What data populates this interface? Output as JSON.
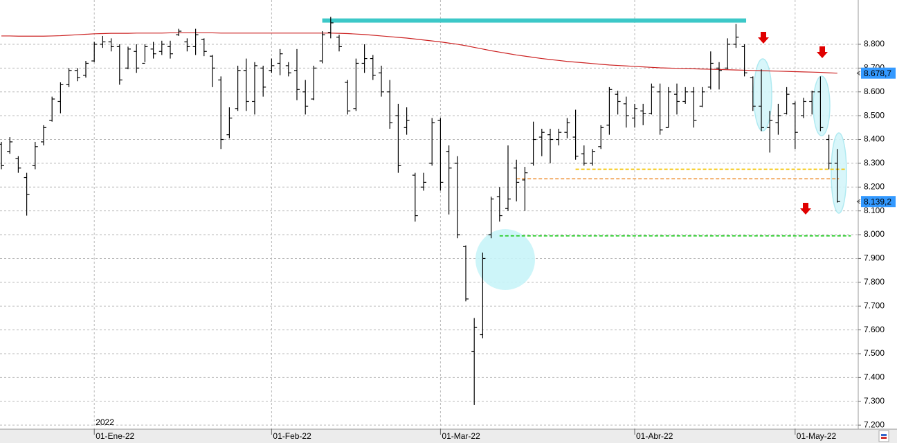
{
  "chart_data": {
    "type": "ohlc",
    "color": "#000000",
    "categories": [
      null,
      null,
      null,
      null,
      null,
      null,
      null,
      null,
      null,
      null,
      null,
      "01-Ene-22",
      null,
      null,
      null,
      null,
      null,
      null,
      null,
      null,
      null,
      null,
      null,
      null,
      null,
      null,
      null,
      null,
      null,
      null,
      null,
      null,
      "01-Feb-22",
      null,
      null,
      null,
      null,
      null,
      null,
      null,
      null,
      null,
      null,
      null,
      null,
      null,
      null,
      null,
      null,
      null,
      null,
      null,
      "01-Mar-22",
      null,
      null,
      null,
      null,
      null,
      null,
      null,
      null,
      null,
      null,
      null,
      null,
      null,
      null,
      null,
      null,
      null,
      null,
      null,
      null,
      null,
      null,
      "01-Abr-22",
      null,
      null,
      null,
      null,
      null,
      null,
      null,
      null,
      null,
      null,
      null,
      null,
      null,
      null,
      null,
      null,
      null,
      null,
      "01-May-22",
      null,
      null,
      null,
      null,
      null
    ],
    "year_label": {
      "index": 11,
      "label": "2022"
    },
    "open": [
      8380,
      8350,
      8320,
      8240,
      8290,
      8390,
      8480,
      8560,
      8630,
      8690,
      8670,
      8730,
      8800,
      8810,
      8790,
      8700,
      8770,
      8720,
      8780,
      8770,
      8790,
      8840,
      8810,
      8790,
      8820,
      8750,
      8650,
      8420,
      8530,
      8690,
      8560,
      8700,
      8690,
      8720,
      8710,
      8690,
      8600,
      8570,
      8730,
      8850,
      8830,
      8640,
      8530,
      8720,
      8740,
      8680,
      8600,
      8500,
      8450,
      8250,
      8200,
      8300,
      8480,
      8350,
      8300,
      7950,
      7510,
      7580,
      8000,
      8160,
      8110,
      8280,
      8230,
      8300,
      8410,
      8420,
      8400,
      8430,
      8410,
      8340,
      8300,
      8370,
      8460,
      8590,
      8550,
      8490,
      8520,
      8510,
      8600,
      8450,
      8590,
      8560,
      8600,
      8540,
      8620,
      8700,
      8700,
      8800,
      8790,
      8660,
      8540,
      8450,
      8470,
      8510,
      8550,
      8500,
      8560,
      8600,
      8400,
      8300
    ],
    "high": [
      8390,
      8410,
      8330,
      8260,
      8390,
      8460,
      8580,
      8640,
      8700,
      8700,
      8730,
      8810,
      8835,
      8825,
      8800,
      8790,
      8800,
      8800,
      8810,
      8815,
      8815,
      8865,
      8825,
      8865,
      8825,
      8755,
      8665,
      8535,
      8710,
      8740,
      8725,
      8710,
      8740,
      8780,
      8725,
      8780,
      8650,
      8710,
      8855,
      8915,
      8840,
      8650,
      8740,
      8800,
      8755,
      8710,
      8650,
      8550,
      8535,
      8260,
      8260,
      8490,
      8490,
      8375,
      8330,
      7955,
      7650,
      7925,
      8160,
      8200,
      8375,
      8315,
      8285,
      8475,
      8445,
      8445,
      8445,
      8490,
      8525,
      8375,
      8360,
      8460,
      8620,
      8605,
      8580,
      8550,
      8550,
      8635,
      8635,
      8620,
      8635,
      8620,
      8620,
      8620,
      8770,
      8725,
      8825,
      8885,
      8800,
      8665,
      8695,
      8520,
      8550,
      8620,
      8560,
      8575,
      8605,
      8665,
      8420,
      8360
    ],
    "low": [
      8275,
      8340,
      8260,
      8080,
      8275,
      8375,
      8475,
      8510,
      8620,
      8645,
      8660,
      8725,
      8785,
      8770,
      8630,
      8695,
      8680,
      8725,
      8740,
      8755,
      8740,
      8835,
      8770,
      8755,
      8750,
      8620,
      8360,
      8405,
      8520,
      8520,
      8505,
      8580,
      8680,
      8670,
      8665,
      8565,
      8505,
      8565,
      8720,
      8825,
      8770,
      8505,
      8520,
      8680,
      8650,
      8580,
      8445,
      8260,
      8420,
      8055,
      8185,
      8290,
      8185,
      8085,
      7985,
      7720,
      7285,
      7565,
      7985,
      8055,
      8100,
      8140,
      8100,
      8290,
      8330,
      8300,
      8375,
      8405,
      8315,
      8290,
      8290,
      8360,
      8420,
      8505,
      8450,
      8450,
      8460,
      8505,
      8420,
      8450,
      8505,
      8550,
      8450,
      8535,
      8610,
      8610,
      8695,
      8785,
      8665,
      8520,
      8435,
      8345,
      8420,
      8505,
      8360,
      8490,
      8505,
      8435,
      8275,
      8135
    ],
    "close": [
      8290,
      8390,
      8280,
      8170,
      8370,
      8450,
      8570,
      8630,
      8690,
      8660,
      8720,
      8800,
      8810,
      8790,
      8650,
      8780,
      8700,
      8790,
      8760,
      8800,
      8760,
      8855,
      8790,
      8840,
      8770,
      8700,
      8400,
      8490,
      8690,
      8560,
      8710,
      8620,
      8710,
      8760,
      8680,
      8610,
      8540,
      8700,
      8840,
      8890,
      8790,
      8520,
      8720,
      8740,
      8670,
      8600,
      8470,
      8290,
      8480,
      8080,
      8220,
      8470,
      8220,
      8280,
      8000,
      7730,
      7610,
      7900,
      8150,
      8080,
      8150,
      8220,
      8260,
      8400,
      8430,
      8400,
      8430,
      8470,
      8330,
      8300,
      8350,
      8450,
      8610,
      8560,
      8500,
      8530,
      8510,
      8620,
      8440,
      8600,
      8560,
      8600,
      8480,
      8600,
      8720,
      8690,
      8800,
      8830,
      8680,
      8540,
      8450,
      8480,
      8500,
      8590,
      8430,
      8560,
      8600,
      8450,
      8300,
      8139.2
    ],
    "moving_average": {
      "color": "#cc2222",
      "values": [
        8835,
        8835,
        8834,
        8834,
        8834,
        8834,
        8835,
        8836,
        8838,
        8840,
        8842,
        8844,
        8845,
        8846,
        8846,
        8846,
        8847,
        8847,
        8847,
        8847,
        8848,
        8848,
        8848,
        8848,
        8848,
        8848,
        8847,
        8847,
        8847,
        8847,
        8847,
        8847,
        8847,
        8847,
        8847,
        8847,
        8847,
        8847,
        8847,
        8847,
        8846,
        8845,
        8843,
        8841,
        8838,
        8835,
        8832,
        8829,
        8826,
        8822,
        8818,
        8814,
        8810,
        8805,
        8800,
        8794,
        8787,
        8780,
        8773,
        8767,
        8761,
        8755,
        8750,
        8745,
        8740,
        8736,
        8732,
        8728,
        8725,
        8722,
        8719,
        8716,
        8713,
        8711,
        8709,
        8707,
        8705,
        8703,
        8701,
        8700,
        8699,
        8698,
        8697,
        8696,
        8695,
        8694,
        8693,
        8692,
        8691,
        8690,
        8689,
        8688,
        8687,
        8686,
        8685,
        8684,
        8683,
        8682,
        8680,
        8678.7
      ]
    },
    "levels": [
      {
        "value": 8900,
        "from": 38,
        "to": 88.2,
        "color": "#3cc8c8",
        "style": "solid"
      },
      {
        "value": 8275,
        "from": 68,
        "to": 100,
        "color": "#f5c400",
        "style": "dashed"
      },
      {
        "value": 8235,
        "from": 61,
        "to": 99.2,
        "color": "#f0a050",
        "style": "dashed"
      },
      {
        "value": 7995,
        "from": 59,
        "to": 100.6,
        "color": "#22cc22",
        "style": "dashed"
      }
    ],
    "price_markers": [
      {
        "value": 8678.7,
        "label": "8.678,7",
        "color": "#3399ff"
      },
      {
        "value": 8139.2,
        "label": "8.139,2",
        "color": "#3399ff"
      }
    ],
    "ylim": [
      7183,
      8986
    ],
    "yticks": [
      {
        "value": 7200,
        "label": "7.200"
      },
      {
        "value": 7300,
        "label": "7.300"
      },
      {
        "value": 7400,
        "label": "7.400"
      },
      {
        "value": 7500,
        "label": "7.500"
      },
      {
        "value": 7600,
        "label": "7.600"
      },
      {
        "value": 7700,
        "label": "7.700"
      },
      {
        "value": 7800,
        "label": "7.800"
      },
      {
        "value": 7900,
        "label": "7.900"
      },
      {
        "value": 8000,
        "label": "8.000"
      },
      {
        "value": 8100,
        "label": "8.100"
      },
      {
        "value": 8200,
        "label": "8.200"
      },
      {
        "value": 8300,
        "label": "8.300"
      },
      {
        "value": 8400,
        "label": "8.400"
      },
      {
        "value": 8500,
        "label": "8.500"
      },
      {
        "value": 8600,
        "label": "8.600"
      },
      {
        "value": 8700,
        "label": "8.700"
      },
      {
        "value": 8800,
        "label": "8.800"
      }
    ],
    "grid": true
  }
}
